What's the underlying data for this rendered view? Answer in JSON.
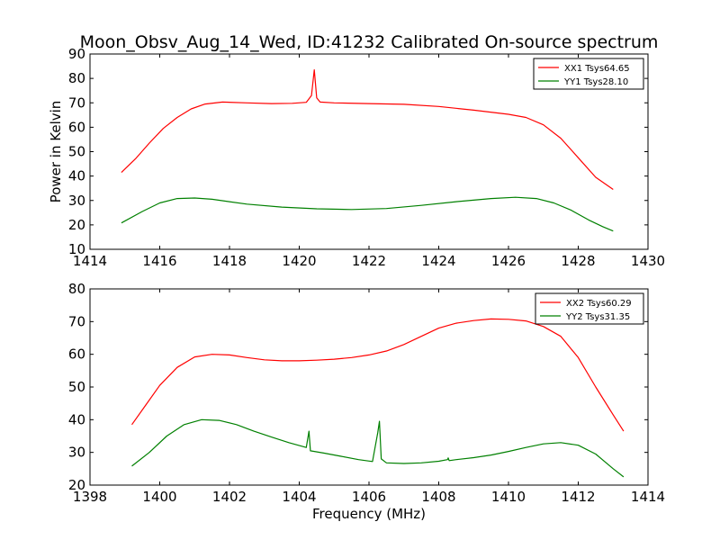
{
  "figure": {
    "title": "Moon_Obsv_Aug_14_Wed, ID:41232 Calibrated On-source spectrum",
    "shared_xlabel": "Frequency (MHz)"
  },
  "chart_data": [
    {
      "type": "line",
      "title": "Moon_Obsv_Aug_14_Wed, ID:41232 Calibrated On-source spectrum",
      "xlabel": "",
      "ylabel": "Power in Kelvin",
      "xlim": [
        1414,
        1430
      ],
      "ylim": [
        10,
        90
      ],
      "xticks": [
        1414,
        1416,
        1418,
        1420,
        1422,
        1424,
        1426,
        1428,
        1430
      ],
      "yticks": [
        10,
        20,
        30,
        40,
        50,
        60,
        70,
        80,
        90
      ],
      "grid": false,
      "legend_position": "top-right",
      "series": [
        {
          "name": "XX1 Tsys64.65",
          "color": "#ff0000",
          "points": [
            [
              1414.9,
              41.5
            ],
            [
              1415.3,
              47
            ],
            [
              1415.7,
              53.5
            ],
            [
              1416.1,
              59.5
            ],
            [
              1416.5,
              64
            ],
            [
              1416.9,
              67.5
            ],
            [
              1417.3,
              69.5
            ],
            [
              1417.8,
              70.3
            ],
            [
              1418.5,
              70
            ],
            [
              1419.2,
              69.7
            ],
            [
              1419.8,
              69.8
            ],
            [
              1420.2,
              70.2
            ],
            [
              1420.35,
              73
            ],
            [
              1420.43,
              83.5
            ],
            [
              1420.5,
              72
            ],
            [
              1420.6,
              70.3
            ],
            [
              1421,
              70
            ],
            [
              1422,
              69.7
            ],
            [
              1423,
              69.4
            ],
            [
              1424,
              68.5
            ],
            [
              1425,
              67
            ],
            [
              1426,
              65.3
            ],
            [
              1426.5,
              64
            ],
            [
              1427,
              61
            ],
            [
              1427.5,
              55.5
            ],
            [
              1428,
              47.5
            ],
            [
              1428.5,
              39.5
            ],
            [
              1429,
              34.5
            ]
          ]
        },
        {
          "name": "YY1 Tsys28.10",
          "color": "#008000",
          "points": [
            [
              1414.9,
              20.8
            ],
            [
              1415.5,
              25.5
            ],
            [
              1416,
              29
            ],
            [
              1416.5,
              30.8
            ],
            [
              1417,
              31
            ],
            [
              1417.5,
              30.5
            ],
            [
              1418.5,
              28.5
            ],
            [
              1419.5,
              27.3
            ],
            [
              1420.5,
              26.6
            ],
            [
              1421.5,
              26.3
            ],
            [
              1422.5,
              26.7
            ],
            [
              1423.5,
              28
            ],
            [
              1424.5,
              29.5
            ],
            [
              1425.5,
              30.8
            ],
            [
              1426.2,
              31.3
            ],
            [
              1426.8,
              30.8
            ],
            [
              1427.3,
              29
            ],
            [
              1427.8,
              26
            ],
            [
              1428.3,
              22
            ],
            [
              1428.7,
              19.3
            ],
            [
              1429,
              17.5
            ]
          ]
        }
      ]
    },
    {
      "type": "line",
      "title": "",
      "xlabel": "Frequency (MHz)",
      "ylabel": "",
      "xlim": [
        1398,
        1414
      ],
      "ylim": [
        20,
        80
      ],
      "xticks": [
        1398,
        1400,
        1402,
        1404,
        1406,
        1408,
        1410,
        1412,
        1414
      ],
      "yticks": [
        20,
        30,
        40,
        50,
        60,
        70,
        80
      ],
      "grid": false,
      "legend_position": "top-right",
      "series": [
        {
          "name": "XX2 Tsys60.29",
          "color": "#ff0000",
          "points": [
            [
              1399.2,
              38.5
            ],
            [
              1399.6,
              44.5
            ],
            [
              1400,
              50.5
            ],
            [
              1400.5,
              56
            ],
            [
              1401,
              59.2
            ],
            [
              1401.5,
              60
            ],
            [
              1402,
              59.8
            ],
            [
              1402.5,
              59
            ],
            [
              1403,
              58.3
            ],
            [
              1403.5,
              58
            ],
            [
              1404,
              58
            ],
            [
              1404.5,
              58.2
            ],
            [
              1405,
              58.5
            ],
            [
              1405.5,
              59
            ],
            [
              1406,
              59.8
            ],
            [
              1406.5,
              61
            ],
            [
              1407,
              63
            ],
            [
              1407.5,
              65.5
            ],
            [
              1408,
              68
            ],
            [
              1408.5,
              69.5
            ],
            [
              1409,
              70.3
            ],
            [
              1409.5,
              70.8
            ],
            [
              1410,
              70.7
            ],
            [
              1410.5,
              70.2
            ],
            [
              1411,
              68.5
            ],
            [
              1411.5,
              65.5
            ],
            [
              1412,
              59
            ],
            [
              1412.5,
              50
            ],
            [
              1413,
              41.5
            ],
            [
              1413.3,
              36.5
            ]
          ]
        },
        {
          "name": "YY2 Tsys31.35",
          "color": "#008000",
          "points": [
            [
              1399.2,
              25.8
            ],
            [
              1399.7,
              30
            ],
            [
              1400.2,
              35
            ],
            [
              1400.7,
              38.5
            ],
            [
              1401.2,
              40
            ],
            [
              1401.7,
              39.8
            ],
            [
              1402.2,
              38.5
            ],
            [
              1402.7,
              36.5
            ],
            [
              1403.2,
              34.7
            ],
            [
              1403.7,
              33
            ],
            [
              1404.2,
              31.5
            ],
            [
              1404.28,
              36.5
            ],
            [
              1404.32,
              30.5
            ],
            [
              1404.7,
              29.8
            ],
            [
              1405.2,
              28.8
            ],
            [
              1405.7,
              27.8
            ],
            [
              1406.1,
              27.2
            ],
            [
              1406.25,
              36
            ],
            [
              1406.3,
              39.5
            ],
            [
              1406.35,
              28
            ],
            [
              1406.5,
              26.8
            ],
            [
              1407,
              26.6
            ],
            [
              1407.5,
              26.8
            ],
            [
              1408,
              27.3
            ],
            [
              1408.25,
              27.8
            ],
            [
              1408.27,
              28.3
            ],
            [
              1408.3,
              27.5
            ],
            [
              1408.5,
              27.8
            ],
            [
              1409,
              28.4
            ],
            [
              1409.5,
              29.2
            ],
            [
              1410,
              30.3
            ],
            [
              1410.5,
              31.5
            ],
            [
              1411,
              32.6
            ],
            [
              1411.5,
              33
            ],
            [
              1412,
              32.2
            ],
            [
              1412.5,
              29.5
            ],
            [
              1413,
              25
            ],
            [
              1413.3,
              22.5
            ]
          ]
        }
      ]
    }
  ]
}
